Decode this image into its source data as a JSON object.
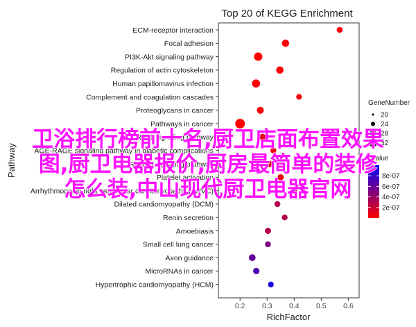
{
  "chart_data": {
    "type": "scatter",
    "title": "Top 20 of KEGG Enrichment",
    "xlabel": "RichFactor",
    "ylabel": "Pathway",
    "xlim": [
      0.12,
      0.64
    ],
    "xticks": [
      0.2,
      0.3,
      0.4,
      0.5,
      0.6
    ],
    "xtick_labels": [
      "0.2",
      "0.3",
      "0.4",
      "0.5",
      "0.6"
    ],
    "grid": false,
    "categories": [
      "ECM-receptor interaction",
      "Focal adhesion",
      "PI3K-Akt signaling pathway",
      "Regulation of actin cytoskeleton",
      "Human papillomavirus infection",
      "Complement and coagulation cascades",
      "Proteoglycans in cancer",
      "Pathways in cancer",
      "Rap1 signaling pathway",
      "AGE-RAGE signaling pathway in diabetic complications",
      "Relaxin signaling pathway",
      "Platelet activation",
      "Arrhythmogenic right ventricular cardiomyopathy (ARVC)",
      "Dilated cardiomyopathy (DCM)",
      "Renin secretion",
      "Amoebiasis",
      "Small cell lung cancer",
      "Axon guidance",
      "MicroRNAs in cancer",
      "Hypertrophic cardiomyopathy (HCM)"
    ],
    "tick_labels": [
      "ECM-receptor interaction",
      "Focal adhesion",
      "PI3K-Akt signaling pathway",
      "Regulation of actin cytoskeleton",
      "Human papillomavirus infection",
      "Complement and coagulation cascades",
      "Proteoglycans in cancer",
      "Pathways in cancer",
      "Rap1 signaling pathway",
      "AGE-RAGE signaling pathway in diabetic complications",
      "Relaxin signaling pathway",
      "Platelet activation",
      "Arrhythmogenic right ventricular cardiomyopathy (ARVC)",
      "Dilated cardiomyopathy (DCM)",
      "Renin secretion",
      "Amoebiasis",
      "Small cell lung cancer",
      "Axon guidance",
      "MicroRNAs in cancer",
      "Hypertrophic cardiomyopathy (HCM)"
    ],
    "points": [
      {
        "category": "ECM-receptor interaction",
        "x": 0.568,
        "gene_number": 8,
        "qvalue": 3e-09
      },
      {
        "category": "Focal adhesion",
        "x": 0.368,
        "gene_number": 15,
        "qvalue": 1e-08
      },
      {
        "category": "PI3K-Akt signaling pathway",
        "x": 0.267,
        "gene_number": 22,
        "qvalue": 2e-09
      },
      {
        "category": "Regulation of actin cytoskeleton",
        "x": 0.347,
        "gene_number": 15,
        "qvalue": 2e-08
      },
      {
        "category": "Human papillomavirus infection",
        "x": 0.259,
        "gene_number": 20,
        "qvalue": 2e-09
      },
      {
        "category": "Complement and coagulation cascades",
        "x": 0.418,
        "gene_number": 7,
        "qvalue": 5e-08
      },
      {
        "category": "Proteoglycans in cancer",
        "x": 0.275,
        "gene_number": 13,
        "qvalue": 4e-08
      },
      {
        "category": "Pathways in cancer",
        "x": 0.2,
        "gene_number": 32,
        "qvalue": 2e-09
      },
      {
        "category": "Rap1 signaling pathway",
        "x": 0.283,
        "gene_number": 12,
        "qvalue": 8e-08
      },
      {
        "category": "AGE-RAGE signaling pathway in diabetic complications",
        "x": 0.323,
        "gene_number": 8,
        "qvalue": 5e-08
      },
      {
        "category": "Relaxin signaling pathway",
        "x": 0.31,
        "gene_number": 10,
        "qvalue": 1e-07
      },
      {
        "category": "Platelet activation",
        "x": 0.35,
        "gene_number": 9,
        "qvalue": 8e-08
      },
      {
        "category": "Arrhythmogenic right ventricular cardiomyopathy (ARVC)",
        "x": 0.4,
        "gene_number": 7,
        "qvalue": 1e-07
      },
      {
        "category": "Dilated cardiomyopathy (DCM)",
        "x": 0.338,
        "gene_number": 8,
        "qvalue": 3e-07
      },
      {
        "category": "Renin secretion",
        "x": 0.365,
        "gene_number": 7,
        "qvalue": 3e-07
      },
      {
        "category": "Amoebiasis",
        "x": 0.303,
        "gene_number": 9,
        "qvalue": 3e-07
      },
      {
        "category": "Small cell lung cancer",
        "x": 0.303,
        "gene_number": 8,
        "qvalue": 5e-07
      },
      {
        "category": "Axon guidance",
        "x": 0.245,
        "gene_number": 12,
        "qvalue": 6e-07
      },
      {
        "category": "MicroRNAs in cancer",
        "x": 0.26,
        "gene_number": 10,
        "qvalue": 7e-07
      },
      {
        "category": "Hypertrophic cardiomyopathy (HCM)",
        "x": 0.314,
        "gene_number": 7,
        "qvalue": 9e-07
      }
    ],
    "size_legend": {
      "title": "GeneNumber",
      "values": [
        20,
        24,
        28,
        32
      ],
      "labels": [
        "20",
        "24",
        "28",
        "32"
      ]
    },
    "color_legend": {
      "title": "qvalue",
      "ticks": [
        2e-07,
        4e-07,
        6e-07,
        8e-07
      ],
      "labels": [
        "2e-07",
        "4e-07",
        "6e-07",
        "8e-07"
      ],
      "low_color": "#ff0000",
      "high_color": "#0000ff"
    },
    "colors": {
      "low_qvalue": "#ff0000",
      "high_qvalue": "#0000ff",
      "axis": "#333333",
      "text": "#222222"
    }
  },
  "overlay": {
    "lines": [
      "卫浴排行榜前十名,厨卫店面布置效果",
      "图,厨卫电器报价,厨房最简单的装修",
      "怎么装,中山现代厨卫电器官网"
    ],
    "color": "#ff10ff"
  }
}
